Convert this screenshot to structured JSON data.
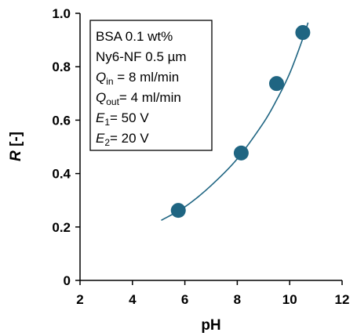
{
  "chart_data": {
    "type": "scatter",
    "xlabel": "pH",
    "ylabel": {
      "main": "R",
      "unit": " [-]"
    },
    "xlim": [
      2,
      12
    ],
    "ylim": [
      0,
      1.0
    ],
    "x_ticks": [
      "2",
      "4",
      "6",
      "8",
      "10",
      "12"
    ],
    "y_ticks": [
      "0",
      "0.2",
      "0.4",
      "0.6",
      "0.8",
      "1.0"
    ],
    "grid": false,
    "points": {
      "x": [
        5.75,
        8.15,
        9.5,
        10.5
      ],
      "y": [
        0.262,
        0.477,
        0.737,
        0.928
      ]
    },
    "fit_curve": {
      "x": [
        5.1,
        6.0,
        7.0,
        8.0,
        9.0,
        9.5,
        10.0,
        10.5,
        10.7
      ],
      "y": [
        0.225,
        0.275,
        0.355,
        0.455,
        0.59,
        0.675,
        0.775,
        0.905,
        0.965
      ]
    },
    "marker_color": "#1f6582",
    "line_color": "#1f6582",
    "annotation": [
      {
        "main": "BSA 0.1 wt%",
        "sub": "",
        "tail": ""
      },
      {
        "main": "Ny6-NF 0.5 µm",
        "sub": "",
        "tail": ""
      },
      {
        "main": "Q",
        "sub": "in",
        "tail": " = 8 ml/min"
      },
      {
        "main": "Q",
        "sub": "out",
        "tail": "= 4 ml/min"
      },
      {
        "main": "E",
        "sub": "1",
        "tail": "= 50 V"
      },
      {
        "main": "E",
        "sub": "2",
        "tail": "= 20 V"
      }
    ]
  }
}
